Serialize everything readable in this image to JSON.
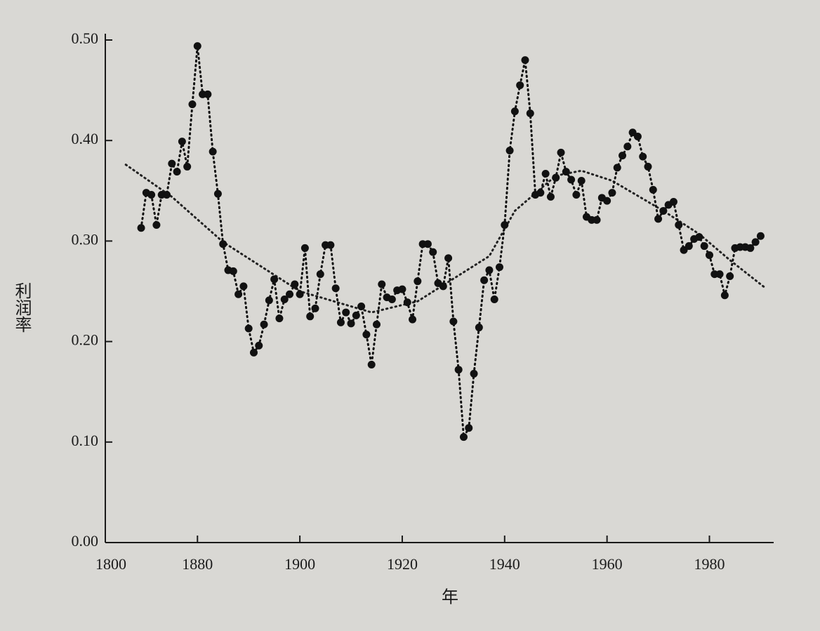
{
  "chart_data": {
    "type": "line",
    "ylabel": "利润率",
    "xlabel": "年",
    "x_origin_label": 1800,
    "xlim": [
      1862,
      1992
    ],
    "xticks": [
      1880,
      1900,
      1920,
      1940,
      1960,
      1980
    ],
    "ylim": [
      0,
      0.5
    ],
    "yticks": [
      {
        "value": 0,
        "label": "0.00"
      },
      {
        "value": 0.1,
        "label": "0.10"
      },
      {
        "value": 0.2,
        "label": "0.20"
      },
      {
        "value": 0.3,
        "label": "0.30"
      },
      {
        "value": 0.4,
        "label": "0.40"
      },
      {
        "value": 0.5,
        "label": "0.50"
      }
    ],
    "grid": false,
    "x": [
      1869,
      1870,
      1871,
      1872,
      1873,
      1874,
      1875,
      1876,
      1877,
      1878,
      1879,
      1880,
      1881,
      1882,
      1883,
      1884,
      1885,
      1886,
      1887,
      1888,
      1889,
      1890,
      1891,
      1892,
      1893,
      1894,
      1895,
      1896,
      1897,
      1898,
      1899,
      1900,
      1901,
      1902,
      1903,
      1904,
      1905,
      1906,
      1907,
      1908,
      1909,
      1910,
      1911,
      1912,
      1913,
      1914,
      1915,
      1916,
      1917,
      1918,
      1919,
      1920,
      1921,
      1922,
      1923,
      1924,
      1925,
      1926,
      1927,
      1928,
      1929,
      1930,
      1931,
      1932,
      1933,
      1934,
      1935,
      1936,
      1937,
      1938,
      1939,
      1940,
      1941,
      1942,
      1943,
      1944,
      1945,
      1946,
      1947,
      1948,
      1949,
      1950,
      1951,
      1952,
      1953,
      1954,
      1955,
      1956,
      1957,
      1958,
      1959,
      1960,
      1961,
      1962,
      1963,
      1964,
      1965,
      1966,
      1967,
      1968,
      1969,
      1970,
      1971,
      1972,
      1973,
      1974,
      1975,
      1976,
      1977,
      1978,
      1979,
      1980,
      1981,
      1982,
      1983,
      1984,
      1985,
      1986,
      1987,
      1988,
      1989,
      1990
    ],
    "values": [
      0.313,
      0.348,
      0.346,
      0.316,
      0.346,
      0.346,
      0.377,
      0.369,
      0.399,
      0.374,
      0.436,
      0.494,
      0.446,
      0.446,
      0.389,
      0.347,
      0.297,
      0.271,
      0.27,
      0.247,
      0.255,
      0.213,
      0.189,
      0.196,
      0.217,
      0.241,
      0.262,
      0.223,
      0.242,
      0.247,
      0.257,
      0.247,
      0.293,
      0.225,
      0.233,
      0.267,
      0.296,
      0.296,
      0.253,
      0.219,
      0.229,
      0.218,
      0.226,
      0.235,
      0.207,
      0.177,
      0.217,
      0.257,
      0.244,
      0.242,
      0.251,
      0.252,
      0.239,
      0.222,
      0.26,
      0.297,
      0.297,
      0.289,
      0.258,
      0.255,
      0.283,
      0.22,
      0.172,
      0.105,
      0.114,
      0.168,
      0.214,
      0.261,
      0.271,
      0.242,
      0.274,
      0.316,
      0.39,
      0.429,
      0.455,
      0.48,
      0.427,
      0.346,
      0.348,
      0.367,
      0.344,
      0.363,
      0.388,
      0.369,
      0.361,
      0.346,
      0.36,
      0.324,
      0.321,
      0.321,
      0.343,
      0.34,
      0.348,
      0.373,
      0.385,
      0.394,
      0.408,
      0.404,
      0.384,
      0.374,
      0.351,
      0.322,
      0.33,
      0.336,
      0.339,
      0.316,
      0.291,
      0.295,
      0.302,
      0.304,
      0.295,
      0.286,
      0.267,
      0.267,
      0.246,
      0.265,
      0.293,
      0.294,
      0.294,
      0.293,
      0.299,
      0.305
    ],
    "color": "#111111",
    "trend": {
      "x": [
        1866,
        1875,
        1885,
        1900,
        1914,
        1923,
        1937,
        1942,
        1950,
        1955,
        1961,
        1971,
        1978,
        1984,
        1991
      ],
      "values": [
        0.376,
        0.344,
        0.299,
        0.25,
        0.229,
        0.24,
        0.285,
        0.33,
        0.365,
        0.37,
        0.36,
        0.33,
        0.307,
        0.281,
        0.253
      ],
      "color": "#222222"
    }
  }
}
